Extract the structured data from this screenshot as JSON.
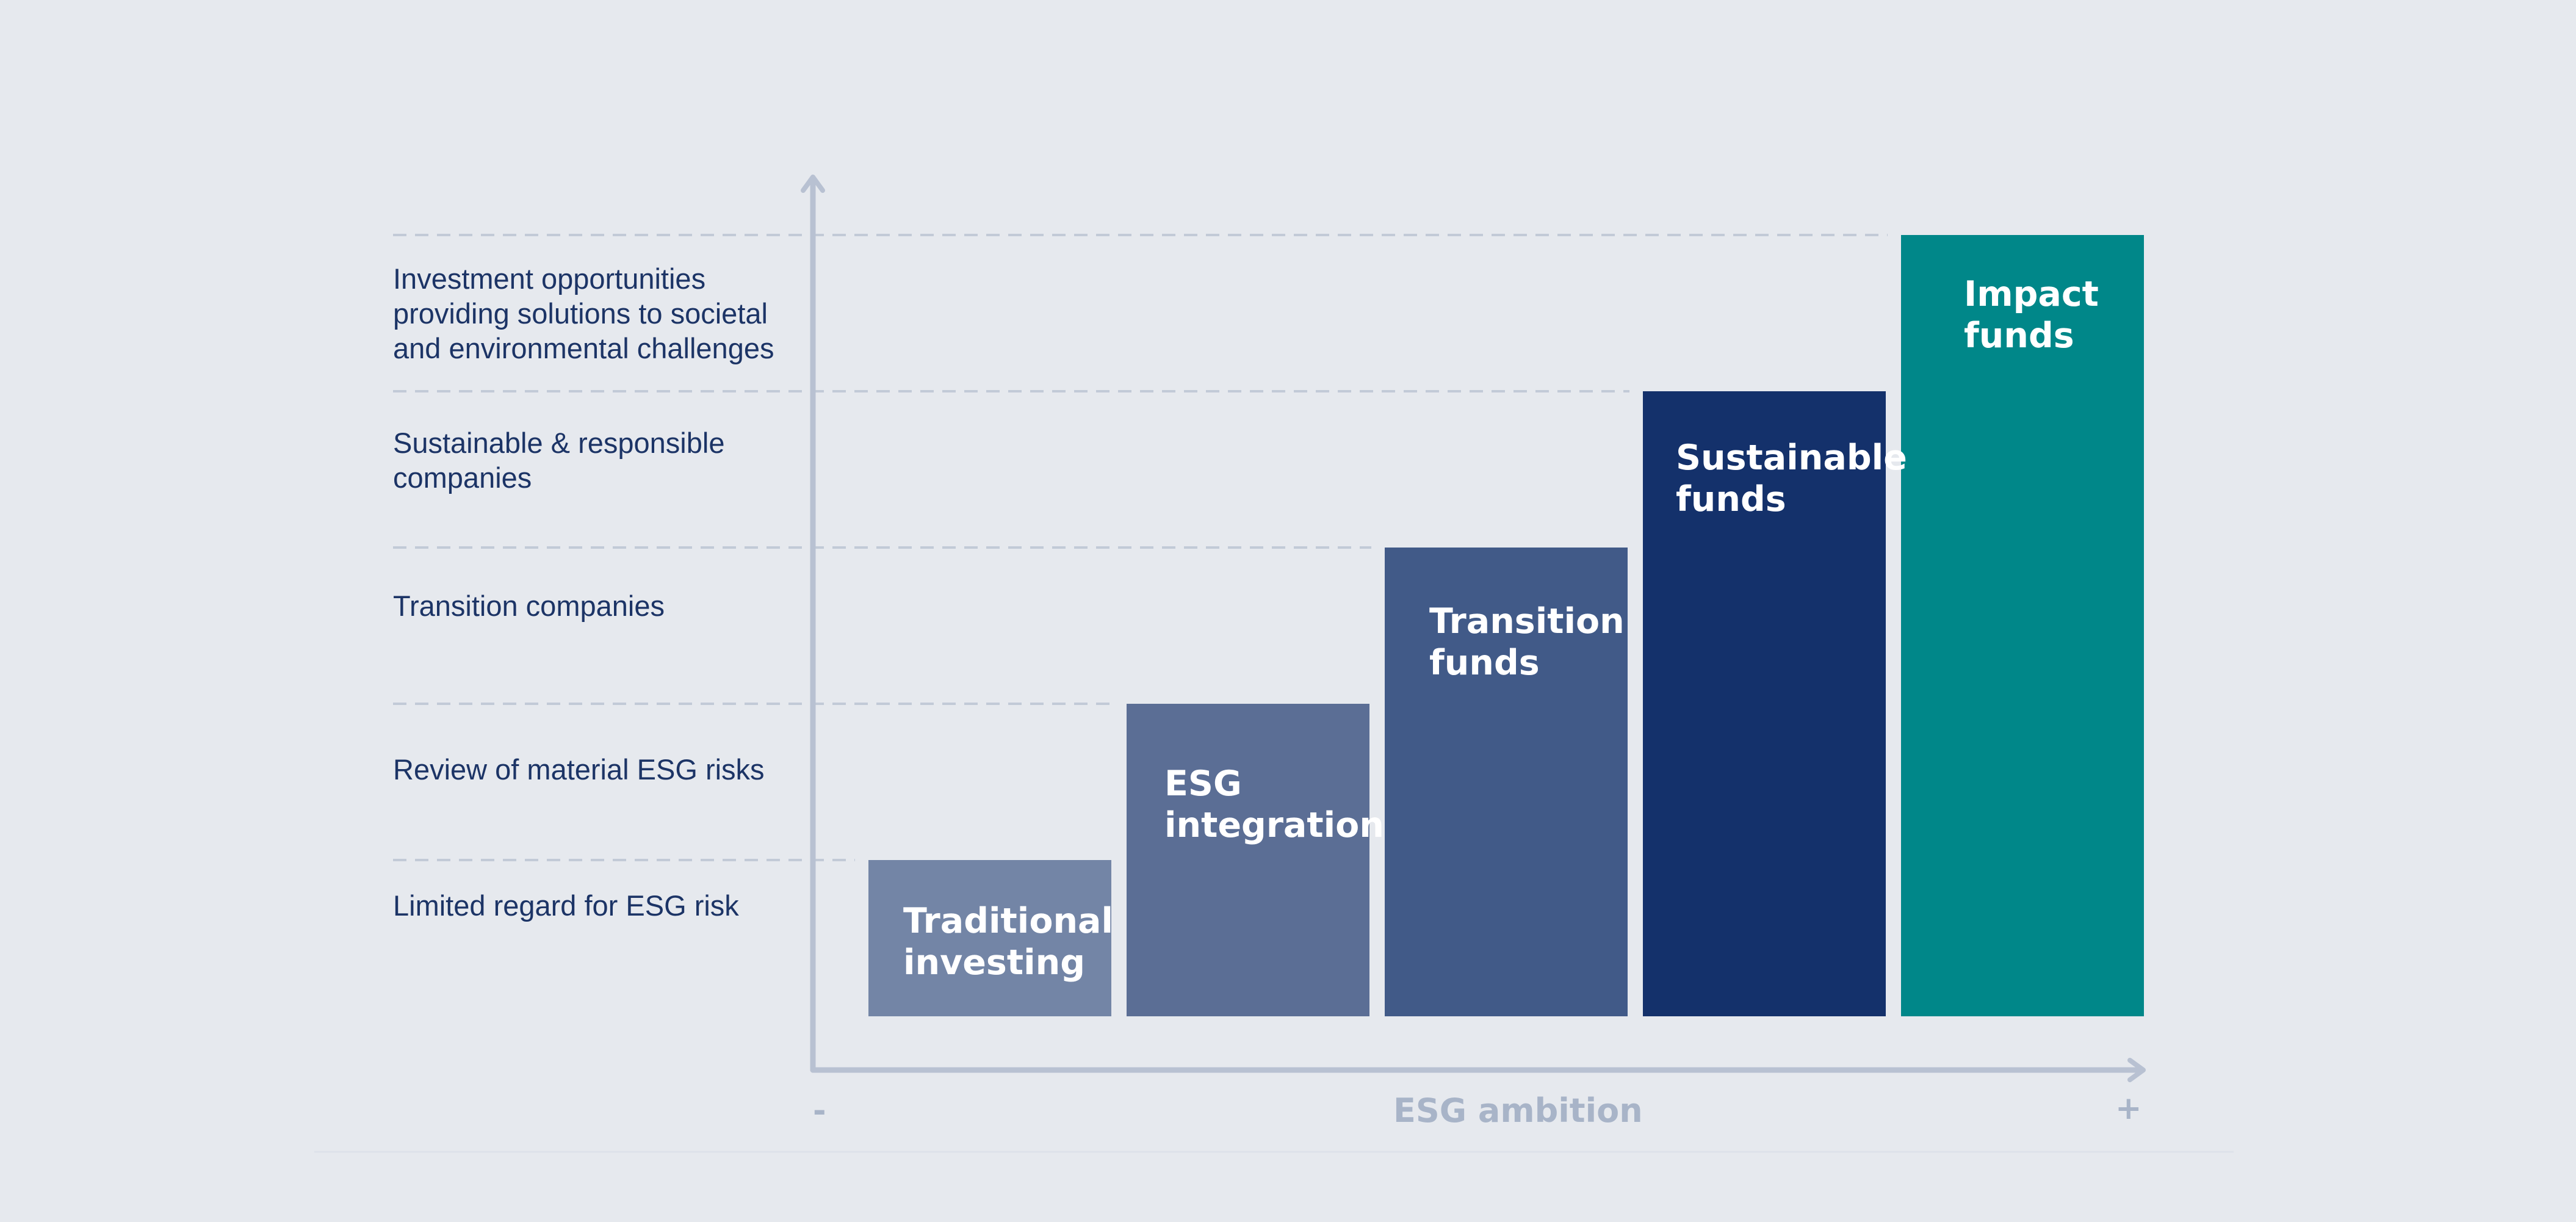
{
  "chart_data": {
    "type": "bar",
    "title": "",
    "xlabel": "ESG ambition",
    "ylabel": "",
    "x_min_label": "-",
    "x_max_label": "+",
    "ylim": [
      0,
      5
    ],
    "y_levels": [
      "Limited regard for ESG risk",
      "Review of material ESG risks",
      "Transition companies",
      "Sustainable & responsible companies",
      "Investment opportunities providing solutions to societal and environmental challenges"
    ],
    "categories": [
      "Traditional investing",
      "ESG integration",
      "Transition funds",
      "Sustainable funds",
      "Impact funds"
    ],
    "values": [
      1,
      2,
      3,
      4,
      5
    ],
    "colors": [
      "#7385a6",
      "#5b6e95",
      "#415a88",
      "#14316b",
      "#008789"
    ]
  },
  "style": {
    "axis_color": "#b8c1d2",
    "grid_color": "#c2cad7",
    "background": "#e6e9ee"
  }
}
